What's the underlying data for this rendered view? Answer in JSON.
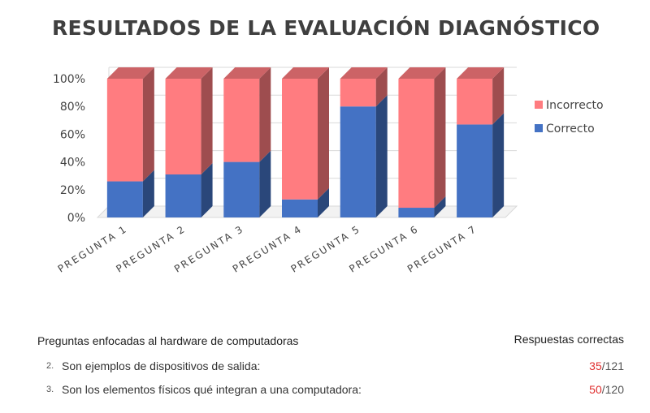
{
  "chart_data": {
    "type": "bar",
    "stacked": true,
    "percent_stacked": true,
    "three_d": true,
    "title": "RESULTADOS DE LA EVALUACIÓN DIAGNÓSTICO",
    "categories": [
      "PREGUNTA 1",
      "PREGUNTA 2",
      "PREGUNTA 3",
      "PREGUNTA 4",
      "PREGUNTA 5",
      "PREGUNTA 6",
      "PREGUNTA 7"
    ],
    "series": [
      {
        "name": "Correcto",
        "color": "#4472c4",
        "values": [
          26,
          31,
          40,
          13,
          80,
          7,
          67
        ]
      },
      {
        "name": "Incorrecto",
        "color": "#ff7c80",
        "values": [
          74,
          69,
          60,
          87,
          20,
          93,
          33
        ]
      }
    ],
    "y_ticks": [
      "0%",
      "20%",
      "40%",
      "60%",
      "80%",
      "100%"
    ],
    "ylim": [
      0,
      100
    ],
    "grid": true,
    "legend_position": "right"
  },
  "table": {
    "questions_header": "Preguntas enfocadas al hardware de computadoras",
    "answers_header": "Respuestas correctas",
    "rows": [
      {
        "num": "2.",
        "text": "Son ejemplos de dispositivos de salida:",
        "correct": "35",
        "total": "/121"
      },
      {
        "num": "3.",
        "text": "Son los elementos físicos qué integran a una computadora:",
        "correct": "50",
        "total": "/120"
      }
    ]
  }
}
